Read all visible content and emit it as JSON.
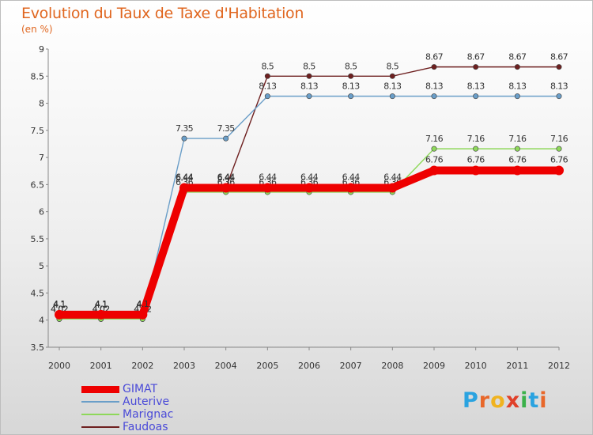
{
  "title": "Evolution du Taux de Taxe d'Habitation",
  "unit_label": "(en %)",
  "logo": {
    "letters": [
      "P",
      "r",
      "o",
      "x",
      "i",
      "t",
      "i"
    ],
    "colors": [
      "#2aa3e0",
      "#e8672a",
      "#f0b320",
      "#e0402a",
      "#3bb14a",
      "#2aa3e0",
      "#e8672a"
    ]
  },
  "chart_data": {
    "type": "line",
    "title": "Evolution du Taux de Taxe d'Habitation",
    "ylabel": "(en %)",
    "xlabel": "",
    "ylim": [
      3.5,
      9
    ],
    "yticks": [
      "3.5",
      "4",
      "4.5",
      "5",
      "5.5",
      "6",
      "6.5",
      "7",
      "7.5",
      "8",
      "8.5",
      "9"
    ],
    "x": [
      "2000",
      "2001",
      "2002",
      "2003",
      "2004",
      "2005",
      "2006",
      "2007",
      "2008",
      "2009",
      "2010",
      "2011",
      "2012"
    ],
    "grid": false,
    "legend_position": "bottom-left",
    "series": [
      {
        "name": "Faudoas",
        "color": "#6e2020",
        "values": [
          4.1,
          4.1,
          4.1,
          6.44,
          6.44,
          8.5,
          8.5,
          8.5,
          8.5,
          8.67,
          8.67,
          8.67,
          8.67
        ],
        "labels": [
          "4.1",
          "4.1",
          "4.1",
          "6.44",
          "6.44",
          "8.5",
          "8.5",
          "8.5",
          "8.5",
          "8.67",
          "8.67",
          "8.67",
          "8.67"
        ]
      },
      {
        "name": "Auterive",
        "color": "#6a9ec8",
        "values": [
          4.02,
          4.02,
          4.02,
          7.35,
          7.35,
          8.13,
          8.13,
          8.13,
          8.13,
          8.13,
          8.13,
          8.13,
          8.13
        ],
        "labels": [
          "4.02",
          "4.02",
          "4.02",
          "7.35",
          "7.35",
          "8.13",
          "8.13",
          "8.13",
          "8.13",
          "8.13",
          "8.13",
          "8.13",
          "8.13"
        ]
      },
      {
        "name": "Marignac",
        "color": "#8ed85a",
        "values": [
          4.02,
          4.02,
          4.02,
          6.36,
          6.36,
          6.36,
          6.36,
          6.36,
          6.36,
          7.16,
          7.16,
          7.16,
          7.16
        ],
        "labels": [
          "4.02",
          "4.02",
          "4.02",
          "6.36",
          "6.36",
          "6.36",
          "6.36",
          "6.36",
          "6.36",
          "7.16",
          "7.16",
          "7.16",
          "7.16"
        ]
      },
      {
        "name": "GIMAT",
        "color": "#ee0000",
        "values": [
          4.1,
          4.1,
          4.1,
          6.44,
          6.44,
          6.44,
          6.44,
          6.44,
          6.44,
          6.76,
          6.76,
          6.76,
          6.76
        ],
        "labels": [
          "4.1",
          "4.1",
          "4.1",
          "6.44",
          "6.44",
          "6.44",
          "6.44",
          "6.44",
          "6.44",
          "6.76",
          "6.76",
          "6.76",
          "6.76"
        ]
      }
    ],
    "legend": [
      "GIMAT",
      "Auterive",
      "Marignac",
      "Faudoas"
    ]
  }
}
